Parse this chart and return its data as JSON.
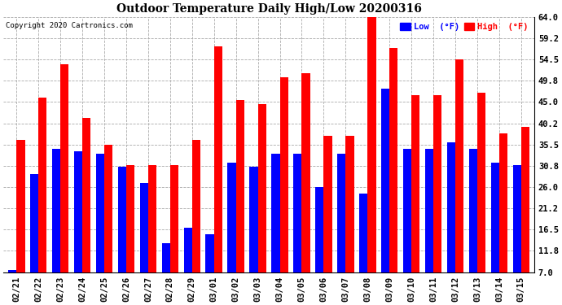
{
  "title": "Outdoor Temperature Daily High/Low 20200316",
  "copyright": "Copyright 2020 Cartronics.com",
  "legend_low": "Low  (°F)",
  "legend_high": "High  (°F)",
  "low_color": "#0000ff",
  "high_color": "#ff0000",
  "background_color": "#ffffff",
  "yticks": [
    7.0,
    11.8,
    16.5,
    21.2,
    26.0,
    30.8,
    35.5,
    40.2,
    45.0,
    49.8,
    54.5,
    59.2,
    64.0
  ],
  "ylim": [
    7.0,
    64.0
  ],
  "dates": [
    "02/21",
    "02/22",
    "02/23",
    "02/24",
    "02/25",
    "02/26",
    "02/27",
    "02/28",
    "02/29",
    "03/01",
    "03/02",
    "03/03",
    "03/04",
    "03/05",
    "03/06",
    "03/07",
    "03/08",
    "03/09",
    "03/10",
    "03/11",
    "03/12",
    "03/13",
    "03/14",
    "03/15"
  ],
  "highs": [
    36.5,
    46.0,
    53.5,
    41.5,
    35.5,
    31.0,
    31.0,
    31.0,
    36.5,
    57.5,
    45.5,
    44.5,
    50.5,
    51.5,
    37.5,
    37.5,
    64.0,
    57.0,
    46.5,
    46.5,
    54.5,
    47.0,
    38.0,
    39.5
  ],
  "lows": [
    7.5,
    29.0,
    34.5,
    34.0,
    33.5,
    30.5,
    27.0,
    13.5,
    17.0,
    15.5,
    31.5,
    30.5,
    33.5,
    33.5,
    26.0,
    33.5,
    24.5,
    48.0,
    34.5,
    34.5,
    36.0,
    34.5,
    31.5,
    31.0
  ]
}
